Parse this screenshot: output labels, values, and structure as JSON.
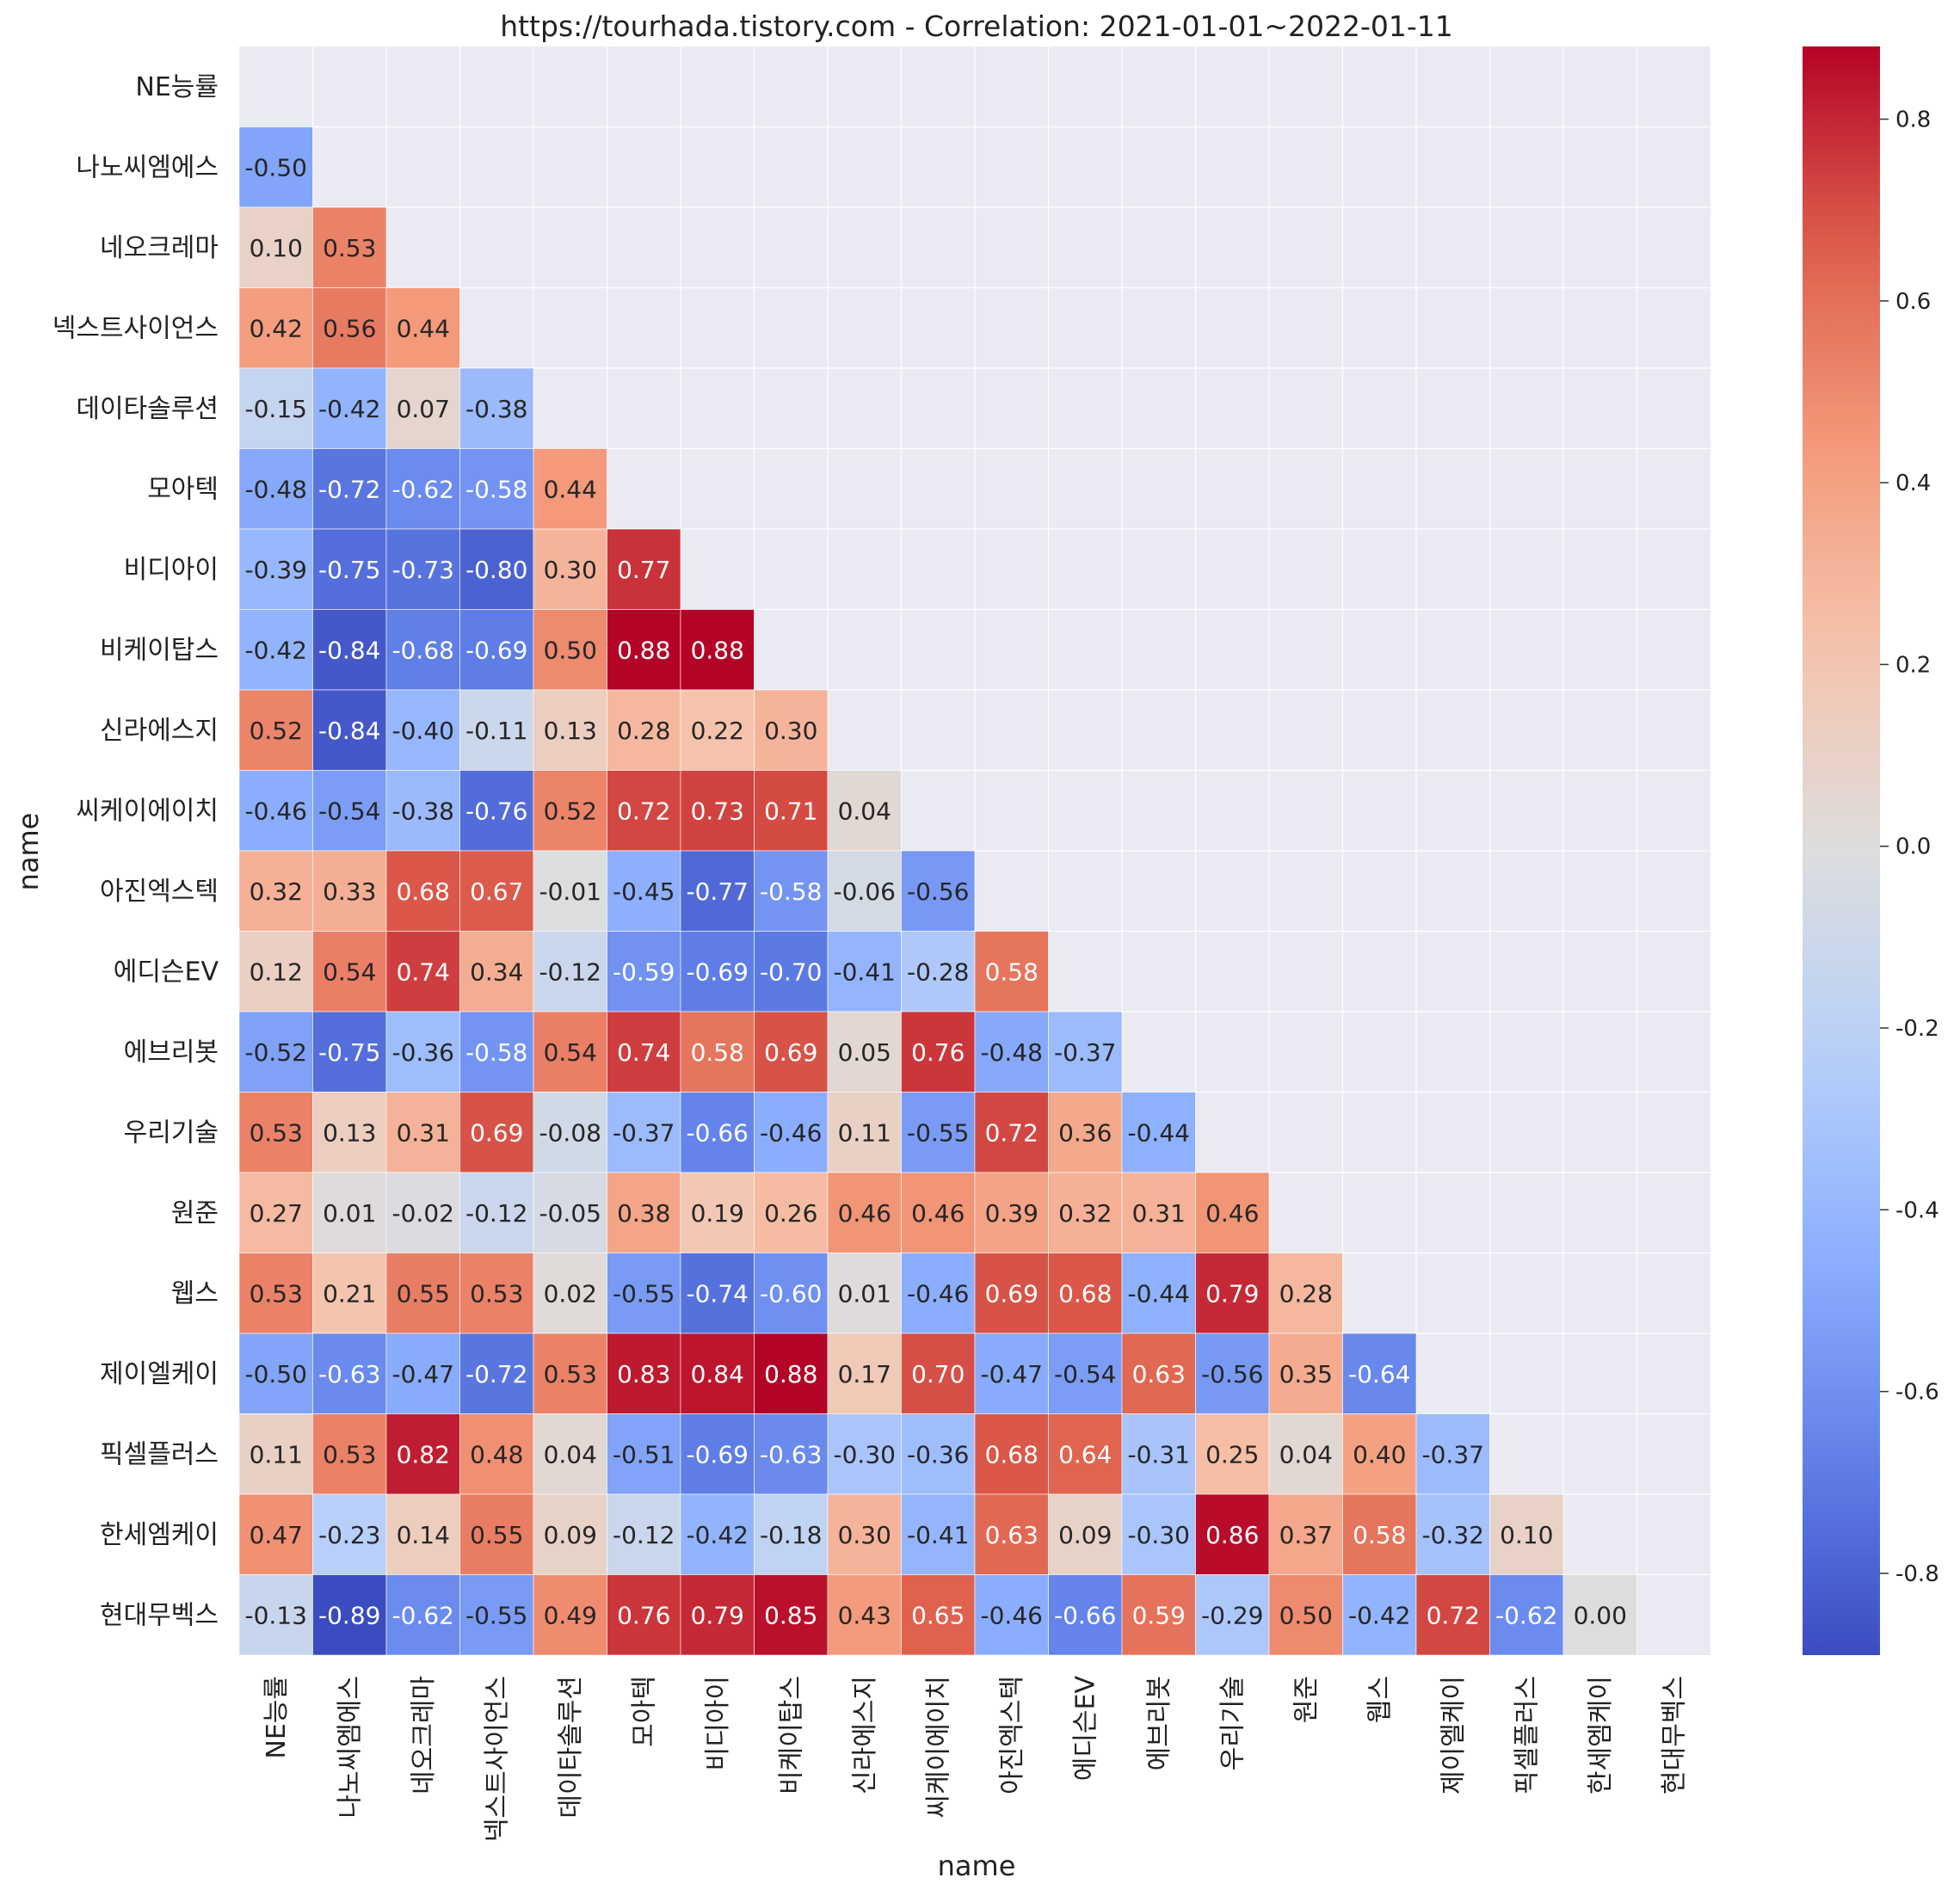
{
  "chart_data": {
    "type": "heatmap",
    "title": "https://tourhada.tistory.com - Correlation: 2021-01-01~2022-01-11",
    "xlabel": "name",
    "ylabel": "name",
    "labels": [
      "NE능률",
      "나노씨엠에스",
      "네오크레마",
      "넥스트사이언스",
      "데이타솔루션",
      "모아텍",
      "비디아이",
      "비케이탑스",
      "신라에스지",
      "씨케이에이치",
      "아진엑스텍",
      "에디슨EV",
      "에브리봇",
      "우리기술",
      "원준",
      "웹스",
      "제이엘케이",
      "픽셀플러스",
      "한세엠케이",
      "현대무벡스"
    ],
    "values": [
      [],
      [
        -0.5
      ],
      [
        0.1,
        0.53
      ],
      [
        0.42,
        0.56,
        0.44
      ],
      [
        -0.15,
        -0.42,
        0.07,
        -0.38
      ],
      [
        -0.48,
        -0.72,
        -0.62,
        -0.58,
        0.44
      ],
      [
        -0.39,
        -0.75,
        -0.73,
        -0.8,
        0.3,
        0.77
      ],
      [
        -0.42,
        -0.84,
        -0.68,
        -0.69,
        0.5,
        0.88,
        0.88
      ],
      [
        0.52,
        -0.84,
        -0.4,
        -0.11,
        0.13,
        0.28,
        0.22,
        0.3
      ],
      [
        -0.46,
        -0.54,
        -0.38,
        -0.76,
        0.52,
        0.72,
        0.73,
        0.71,
        0.04
      ],
      [
        0.32,
        0.33,
        0.68,
        0.67,
        -0.01,
        -0.45,
        -0.77,
        -0.58,
        -0.06,
        -0.56
      ],
      [
        0.12,
        0.54,
        0.74,
        0.34,
        -0.12,
        -0.59,
        -0.69,
        -0.7,
        -0.41,
        -0.28,
        0.58
      ],
      [
        -0.52,
        -0.75,
        -0.36,
        -0.58,
        0.54,
        0.74,
        0.58,
        0.69,
        0.05,
        0.76,
        -0.48,
        -0.37
      ],
      [
        0.53,
        0.13,
        0.31,
        0.69,
        -0.08,
        -0.37,
        -0.66,
        -0.46,
        0.11,
        -0.55,
        0.72,
        0.36,
        -0.44
      ],
      [
        0.27,
        0.01,
        -0.02,
        -0.12,
        -0.05,
        0.38,
        0.19,
        0.26,
        0.46,
        0.46,
        0.39,
        0.32,
        0.31,
        0.46
      ],
      [
        0.53,
        0.21,
        0.55,
        0.53,
        0.02,
        -0.55,
        -0.74,
        -0.6,
        0.01,
        -0.46,
        0.69,
        0.68,
        -0.44,
        0.79,
        0.28
      ],
      [
        -0.5,
        -0.63,
        -0.47,
        -0.72,
        0.53,
        0.83,
        0.84,
        0.88,
        0.17,
        0.7,
        -0.47,
        -0.54,
        0.63,
        -0.56,
        0.35,
        -0.64
      ],
      [
        0.11,
        0.53,
        0.82,
        0.48,
        0.04,
        -0.51,
        -0.69,
        -0.63,
        -0.3,
        -0.36,
        0.68,
        0.64,
        -0.31,
        0.25,
        0.04,
        0.4,
        -0.37
      ],
      [
        0.47,
        -0.23,
        0.14,
        0.55,
        0.09,
        -0.12,
        -0.42,
        -0.18,
        0.3,
        -0.41,
        0.63,
        0.09,
        -0.3,
        0.86,
        0.37,
        0.58,
        -0.32,
        0.1
      ],
      [
        -0.13,
        -0.89,
        -0.62,
        -0.55,
        0.49,
        0.76,
        0.79,
        0.85,
        0.43,
        0.65,
        -0.46,
        -0.66,
        0.59,
        -0.29,
        0.5,
        -0.42,
        0.72,
        -0.62,
        0.0
      ]
    ],
    "mask": "upper-triangle-including-diagonal",
    "vmin": -0.89,
    "vmax": 0.88,
    "colormap": "coolwarm",
    "colorbar_ticks": [
      "0.8",
      "0.6",
      "0.4",
      "0.2",
      "0.0",
      "-0.2",
      "-0.4",
      "-0.6",
      "-0.8"
    ],
    "colorbar_tick_values": [
      0.8,
      0.6,
      0.4,
      0.2,
      0.0,
      -0.2,
      -0.4,
      -0.6,
      -0.8
    ],
    "grid": true,
    "legend": "colorbar right"
  }
}
